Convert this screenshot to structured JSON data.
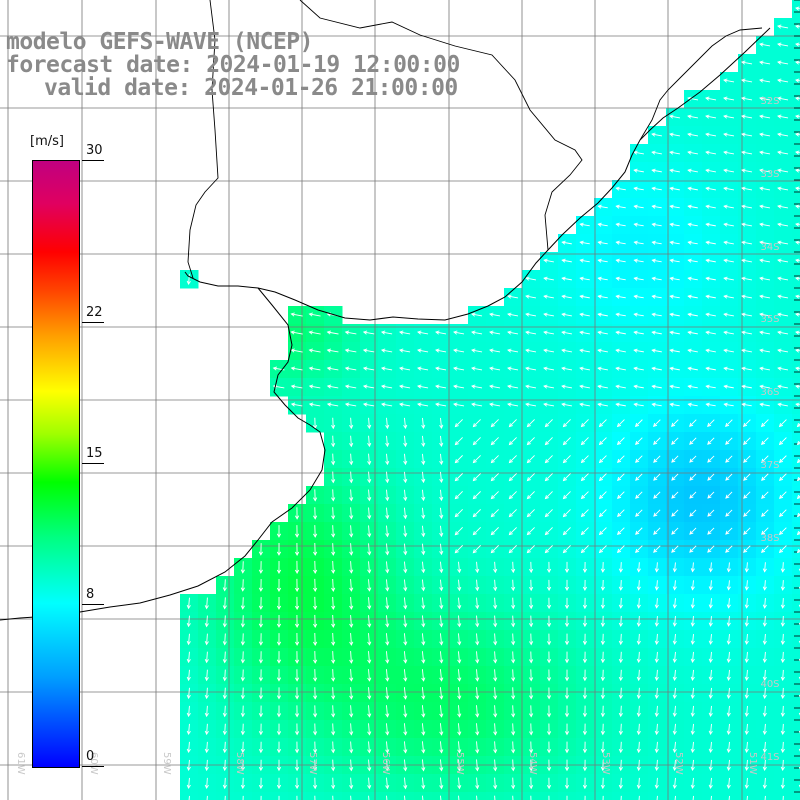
{
  "title": {
    "line1": "modelo GEFS-WAVE (NCEP)",
    "line2": "forecast date: 2024-01-19 12:00:00",
    "line3": "valid date: 2024-01-26 21:00:00"
  },
  "colorbar": {
    "unit": "[m/s]",
    "min": 0,
    "max": 30,
    "ticks": [
      "30",
      "22",
      "15",
      "8",
      "0"
    ],
    "tick_values": [
      30,
      22,
      15,
      8,
      0
    ],
    "colors": [
      "#0000ff",
      "#00a0ff",
      "#00ffff",
      "#00ff80",
      "#00ff00",
      "#a0ff00",
      "#ffff00",
      "#ffa000",
      "#ff4000",
      "#ff0000",
      "#c00080"
    ]
  },
  "map": {
    "variable": "wind speed and direction",
    "lat_labels": [
      "32S",
      "33S",
      "34S",
      "35S",
      "36S",
      "37S",
      "38S",
      "40S",
      "41S"
    ],
    "lon_labels": [
      "61W",
      "60W",
      "59W",
      "58W",
      "57W",
      "56W",
      "55W",
      "54W",
      "53W",
      "52W",
      "51W"
    ],
    "grid_lines": true,
    "land_color": "#ffffff",
    "coast_color": "#000000",
    "arrow_color": "#ffffff"
  }
}
